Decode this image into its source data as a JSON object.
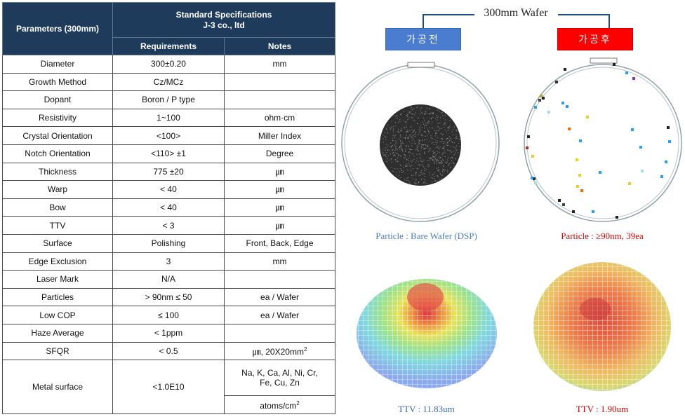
{
  "table": {
    "header": {
      "parameters": "Parameters (300mm)",
      "standard_line1": "Standard  Specifications",
      "standard_line2": "J-3 co., ltd",
      "requirements": "Requirements",
      "notes": "Notes"
    },
    "rows": [
      {
        "param": "Diameter",
        "req": "300±0.20",
        "note": "mm"
      },
      {
        "param": "Growth Method",
        "req": "Cz/MCz",
        "note": ""
      },
      {
        "param": "Dopant",
        "req": "Boron / P type",
        "note": ""
      },
      {
        "param": "Resistivity",
        "req": "1~100",
        "note": "ohm·cm"
      },
      {
        "param": "Crystal Orientation",
        "req": "<100>",
        "note": "Miller Index"
      },
      {
        "param": "Notch Orientation",
        "req": "<110>  ±1",
        "note": "Degree"
      },
      {
        "param": "Thickness",
        "req": "775  ±20",
        "note": "㎛"
      },
      {
        "param": "Warp",
        "req": "<  40",
        "note": "㎛"
      },
      {
        "param": "Bow",
        "req": "<  40",
        "note": "㎛"
      },
      {
        "param": "TTV",
        "req": "<  3",
        "note": "㎛"
      },
      {
        "param": "Surface",
        "req": "Polishing",
        "note": "Front, Back, Edge"
      },
      {
        "param": "Edge Exclusion",
        "req": "3",
        "note": "mm"
      },
      {
        "param": "Laser Mark",
        "req": "N/A",
        "note": ""
      },
      {
        "param": "Particles",
        "req": ">  90nm  ≤  50",
        "note": "ea / Wafer"
      },
      {
        "param": "Low COP",
        "req": "≤ 100",
        "note": "ea / Wafer"
      },
      {
        "param": "Haze Average",
        "req": "< 1ppm",
        "note": ""
      }
    ],
    "sfqr": {
      "param": "SFQR",
      "req": "<  0.5",
      "note": "㎛, 20X20mm",
      "note_sup": "2"
    },
    "metal": {
      "param": "Metal surface",
      "req": "<1.0E10",
      "note_line1": "Na, K, Ca, Al, Ni, Cr,",
      "note_line2": "Fe, Cu, Zn",
      "unit": "atoms/cm",
      "unit_sup": "2"
    }
  },
  "figure": {
    "title": "300mm Wafer",
    "before_label": "가공전",
    "after_label": "가공후",
    "before_caption": "Particle : Bare Wafer (DSP)",
    "after_caption": "Particle : ≥90nm, 39ea",
    "before_ttv": "TTV : 11.83um",
    "after_ttv": "TTV : 1.90um",
    "colors": {
      "before_label_bg": "#4a7cd0",
      "after_label_bg": "#ff0000",
      "header_bg": "#1f3b5c"
    }
  }
}
